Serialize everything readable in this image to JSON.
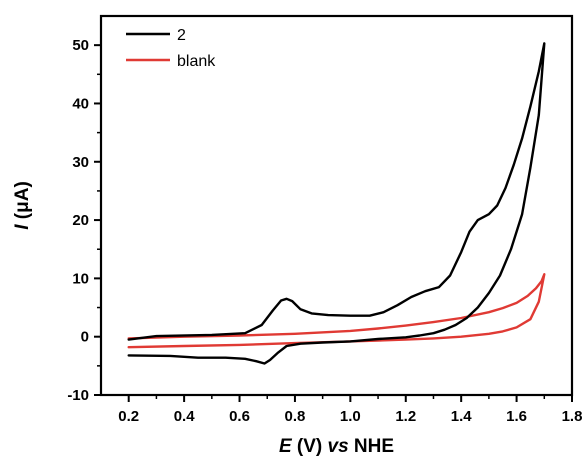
{
  "chart_data": {
    "type": "line",
    "xlabel": {
      "italic": "E",
      "mid": " (V) ",
      "italic2": "vs",
      "end": " NHE"
    },
    "ylabel": {
      "italic": "I",
      "rest": " (μA)"
    },
    "xlim": [
      0.1,
      1.8
    ],
    "ylim": [
      -10,
      55
    ],
    "xticks": [
      0.2,
      0.4,
      0.6,
      0.8,
      1.0,
      1.2,
      1.4,
      1.6,
      1.8
    ],
    "xtick_labels": [
      "0.2",
      "0.4",
      "0.6",
      "0.8",
      "1.0",
      "1.2",
      "1.4",
      "1.6",
      "1.8"
    ],
    "yticks": [
      -10,
      0,
      10,
      20,
      30,
      40,
      50
    ],
    "ytick_labels": [
      "-10",
      "0",
      "10",
      "20",
      "30",
      "40",
      "50"
    ],
    "legend_position": "top-left",
    "series": [
      {
        "name": "2",
        "color": "#000000",
        "x": [
          0.2,
          0.3,
          0.5,
          0.62,
          0.68,
          0.72,
          0.75,
          0.77,
          0.79,
          0.82,
          0.86,
          0.92,
          1.0,
          1.07,
          1.12,
          1.17,
          1.22,
          1.27,
          1.32,
          1.36,
          1.4,
          1.43,
          1.46,
          1.5,
          1.53,
          1.56,
          1.59,
          1.62,
          1.65,
          1.68,
          1.7,
          1.68,
          1.65,
          1.62,
          1.58,
          1.54,
          1.5,
          1.46,
          1.42,
          1.38,
          1.34,
          1.3,
          1.25,
          1.2,
          1.1,
          1.0,
          0.9,
          0.82,
          0.77,
          0.74,
          0.71,
          0.69,
          0.66,
          0.62,
          0.55,
          0.45,
          0.35,
          0.2
        ],
        "y": [
          -0.5,
          0.1,
          0.3,
          0.6,
          2.0,
          4.5,
          6.2,
          6.5,
          6.1,
          4.7,
          4.0,
          3.7,
          3.6,
          3.6,
          4.2,
          5.4,
          6.8,
          7.8,
          8.5,
          10.5,
          14.5,
          18.0,
          20.0,
          21.0,
          22.5,
          25.5,
          29.5,
          34.0,
          39.5,
          45.5,
          50.3,
          38.0,
          29.0,
          21.0,
          15.0,
          10.5,
          7.5,
          5.0,
          3.2,
          2.0,
          1.2,
          0.6,
          0.2,
          -0.1,
          -0.4,
          -0.8,
          -1.0,
          -1.2,
          -1.6,
          -2.7,
          -4.0,
          -4.6,
          -4.2,
          -3.8,
          -3.6,
          -3.6,
          -3.3,
          -3.2
        ]
      },
      {
        "name": "blank",
        "color": "#e03a34",
        "x": [
          0.2,
          0.4,
          0.6,
          0.8,
          1.0,
          1.1,
          1.2,
          1.3,
          1.4,
          1.5,
          1.55,
          1.6,
          1.64,
          1.67,
          1.69,
          1.7,
          1.68,
          1.65,
          1.6,
          1.55,
          1.5,
          1.4,
          1.3,
          1.2,
          1.0,
          0.8,
          0.6,
          0.4,
          0.2
        ],
        "y": [
          -0.3,
          0.0,
          0.2,
          0.5,
          1.0,
          1.4,
          1.9,
          2.5,
          3.2,
          4.2,
          4.9,
          5.8,
          7.0,
          8.3,
          9.5,
          10.7,
          6.0,
          3.0,
          1.6,
          0.9,
          0.5,
          0.0,
          -0.3,
          -0.5,
          -0.8,
          -1.1,
          -1.4,
          -1.6,
          -1.8
        ]
      }
    ]
  }
}
